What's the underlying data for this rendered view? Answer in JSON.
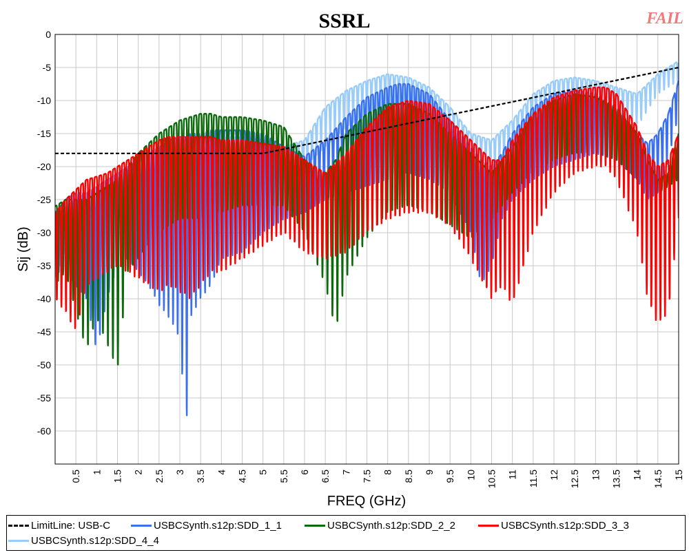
{
  "chart_data": {
    "type": "line",
    "title": "SSRL",
    "status": "FAIL",
    "xlabel": "FREQ (GHz)",
    "ylabel": "Sij  (dB)",
    "xlim": [
      0,
      15
    ],
    "ylim": [
      -65,
      0
    ],
    "xticks": [
      "0.5",
      "1",
      "1.5",
      "2",
      "2.5",
      "3",
      "3.5",
      "4",
      "4.5",
      "5",
      "5.5",
      "6",
      "6.5",
      "7",
      "7.5",
      "8",
      "8.5",
      "9",
      "9.5",
      "10",
      "10.5",
      "11",
      "11.5",
      "12",
      "12.5",
      "13",
      "13.5",
      "14",
      "14.5",
      "15"
    ],
    "yticks": [
      "0",
      "-5",
      "-10",
      "-15",
      "-20",
      "-25",
      "-30",
      "-35",
      "-40",
      "-45",
      "-50",
      "-55",
      "-60"
    ],
    "grid": true,
    "legend_position": "bottom",
    "series": [
      {
        "name": "LimitLine: USB-C",
        "color": "#000000",
        "dashed": true,
        "x": [
          0,
          5,
          15
        ],
        "y": [
          -18,
          -18,
          -5
        ]
      },
      {
        "name": "USBCSynth.s12p:SDD_1_1",
        "color": "#3a6ff0",
        "x": [
          0.0,
          0.25,
          0.5,
          0.75,
          1.0,
          1.25,
          1.5,
          1.75,
          2.0,
          2.25,
          2.5,
          2.75,
          3.0,
          3.15,
          3.25,
          3.5,
          3.75,
          4.0,
          4.5,
          5.0,
          5.5,
          6.0,
          6.5,
          7.0,
          7.5,
          8.0,
          8.25,
          8.5,
          9.0,
          9.5,
          10.0,
          10.25,
          10.5,
          10.75,
          11.0,
          11.5,
          12.0,
          12.5,
          13.0,
          13.5,
          14.0,
          14.25,
          14.5,
          14.75,
          15.0
        ],
        "upper": [
          -27,
          -25,
          -24,
          -24,
          -23,
          -22,
          -21,
          -20,
          -19,
          -18,
          -17,
          -16,
          -15.5,
          -15.5,
          -15,
          -15,
          -14.5,
          -14.5,
          -14.5,
          -15,
          -17,
          -18.5,
          -16,
          -12.5,
          -9.5,
          -8,
          -7.5,
          -7.5,
          -9,
          -13,
          -17,
          -19,
          -20,
          -18,
          -15,
          -11,
          -9,
          -8.5,
          -9,
          -11,
          -15,
          -16.5,
          -15,
          -12,
          -7
        ],
        "lower": [
          -36,
          -36,
          -38,
          -40,
          -48,
          -40,
          -35,
          -34,
          -36,
          -38,
          -41,
          -43,
          -46,
          -61,
          -43,
          -40,
          -38,
          -34,
          -33,
          -30,
          -28,
          -27,
          -25,
          -24,
          -23,
          -22,
          -21,
          -21,
          -22,
          -24,
          -30,
          -38,
          -35,
          -28,
          -25,
          -22,
          -20,
          -19,
          -18,
          -19,
          -22,
          -25,
          -24,
          -19,
          -12
        ],
        "periods": [
          0.0
        ],
        "period": 0.11
      },
      {
        "name": "USBCSynth.s12p:SDD_2_2",
        "color": "#0b6b0b",
        "x": [
          0.0,
          0.25,
          0.5,
          0.75,
          1.0,
          1.25,
          1.5,
          1.75,
          2.0,
          2.25,
          2.5,
          2.75,
          3.0,
          3.25,
          3.5,
          3.75,
          4.0,
          4.5,
          5.0,
          5.5,
          6.0,
          6.5,
          6.75,
          7.0,
          7.5,
          8.0,
          8.5,
          9.0,
          9.5,
          10.0,
          10.5,
          11.0,
          11.5,
          12.0,
          12.5,
          13.0,
          13.5,
          14.0,
          14.25,
          14.5,
          14.75,
          15.0
        ],
        "upper": [
          -26,
          -25,
          -25,
          -25,
          -24,
          -23,
          -22,
          -20,
          -18,
          -16.5,
          -15,
          -14,
          -13,
          -12.5,
          -12,
          -12,
          -12.5,
          -12.5,
          -13,
          -14,
          -19,
          -21,
          -19,
          -15,
          -12,
          -10.5,
          -10.5,
          -12,
          -15,
          -18,
          -21,
          -17,
          -12,
          -10,
          -9,
          -9.5,
          -11,
          -15,
          -19,
          -22,
          -21,
          -15
        ],
        "lower": [
          -38,
          -36,
          -42,
          -48,
          -43,
          -47,
          -51,
          -36,
          -34,
          -32,
          -30,
          -29,
          -28,
          -28,
          -28,
          -27,
          -27,
          -26,
          -26,
          -26,
          -30,
          -38,
          -45,
          -37,
          -31,
          -27,
          -26,
          -27,
          -29,
          -31,
          -28,
          -24,
          -21,
          -19,
          -18,
          -18,
          -19,
          -22,
          -25,
          -24,
          -23,
          -22
        ],
        "period": 0.12
      },
      {
        "name": "USBCSynth.s12p:SDD_3_3",
        "color": "#ff0000",
        "x": [
          0.0,
          0.25,
          0.5,
          0.75,
          1.0,
          1.25,
          1.5,
          1.75,
          2.0,
          2.25,
          2.5,
          2.75,
          3.0,
          3.25,
          3.5,
          3.75,
          4.0,
          4.5,
          5.0,
          5.5,
          6.0,
          6.5,
          7.0,
          7.5,
          8.0,
          8.5,
          9.0,
          9.5,
          10.0,
          10.5,
          10.75,
          11.0,
          11.5,
          12.0,
          12.5,
          13.0,
          13.25,
          13.5,
          14.0,
          14.25,
          14.5,
          14.75,
          15.0
        ],
        "upper": [
          -27,
          -25,
          -23.5,
          -22,
          -21.5,
          -21,
          -20,
          -19,
          -18,
          -17,
          -16,
          -15.5,
          -15.5,
          -15.5,
          -15.5,
          -15.5,
          -16,
          -16,
          -16.5,
          -17,
          -19,
          -21,
          -18,
          -14,
          -11,
          -10,
          -10.5,
          -13,
          -16,
          -19,
          -19,
          -16,
          -12,
          -9.5,
          -8.5,
          -8,
          -8,
          -9,
          -14,
          -18,
          -20,
          -19,
          -15
        ],
        "lower": [
          -40,
          -42,
          -45,
          -38,
          -37,
          -36,
          -35,
          -36,
          -37,
          -38,
          -39,
          -38,
          -39,
          -40,
          -38,
          -36,
          -36,
          -34,
          -32,
          -30,
          -33,
          -34,
          -33,
          -30,
          -28,
          -27,
          -27,
          -29,
          -34,
          -40,
          -38,
          -41,
          -30,
          -24,
          -21,
          -20,
          -20,
          -22,
          -30,
          -40,
          -44,
          -42,
          -28
        ],
        "period": 0.11
      },
      {
        "name": "USBCSynth.s12p:SDD_4_4",
        "color": "#99ccf8",
        "x": [
          0.0,
          0.25,
          0.5,
          0.75,
          1.0,
          1.5,
          2.0,
          2.5,
          3.0,
          3.5,
          4.0,
          4.5,
          5.0,
          5.5,
          6.0,
          6.5,
          7.0,
          7.5,
          8.0,
          8.5,
          9.0,
          9.5,
          10.0,
          10.5,
          11.0,
          11.5,
          12.0,
          12.5,
          13.0,
          13.5,
          14.0,
          14.5,
          15.0
        ],
        "upper": [
          -28,
          -26,
          -25,
          -24,
          -23,
          -21,
          -19,
          -17,
          -16,
          -15.5,
          -15.5,
          -15.5,
          -16,
          -17,
          -16,
          -11,
          -8.5,
          -7,
          -6,
          -6.5,
          -8,
          -11,
          -15,
          -16,
          -13,
          -9,
          -7,
          -6.5,
          -7,
          -8,
          -9,
          -6,
          -4
        ],
        "lower": [
          -37,
          -33,
          -30,
          -28,
          -27,
          -25,
          -23,
          -22,
          -21,
          -20,
          -20,
          -20,
          -20,
          -20,
          -20,
          -17,
          -14,
          -12,
          -11,
          -11,
          -12,
          -15,
          -19,
          -21,
          -18,
          -14,
          -12,
          -11,
          -11,
          -12,
          -14,
          -9,
          -7
        ],
        "period": 0.11
      }
    ]
  }
}
